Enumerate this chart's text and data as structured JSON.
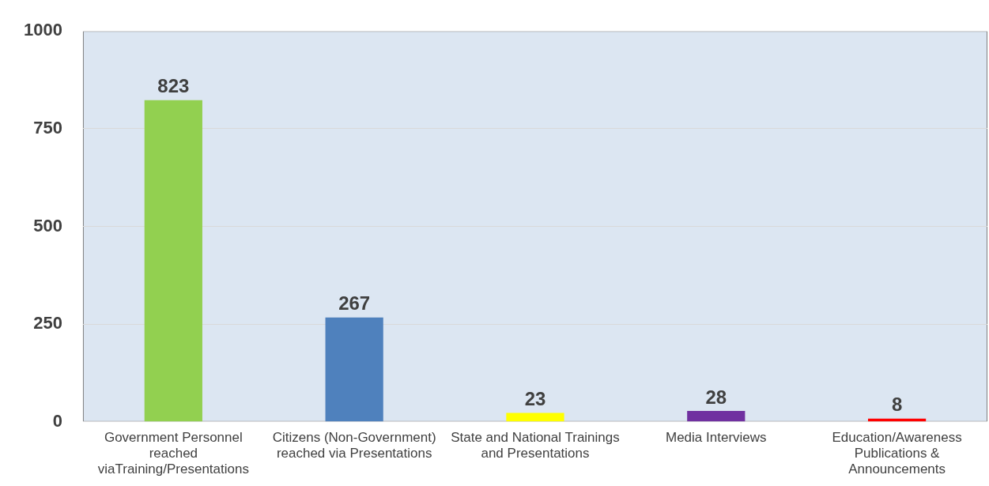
{
  "chart_data": {
    "type": "bar",
    "categories": [
      "Government Personnel reached viaTraining/Presentations",
      "Citizens (Non-Government) reached via Presentations",
      "State and National Trainings and Presentations",
      "Media Interviews",
      "Education/Awareness Publications & Announcements"
    ],
    "values": [
      823,
      267,
      23,
      28,
      8
    ],
    "colors": [
      "#92d050",
      "#4f81bd",
      "#ffff00",
      "#7030a0",
      "#ff0000"
    ],
    "ylim": [
      0,
      1000
    ],
    "yticks": [
      0,
      250,
      500,
      750,
      1000
    ],
    "grid": "y",
    "data_labels": true,
    "legend": false
  }
}
